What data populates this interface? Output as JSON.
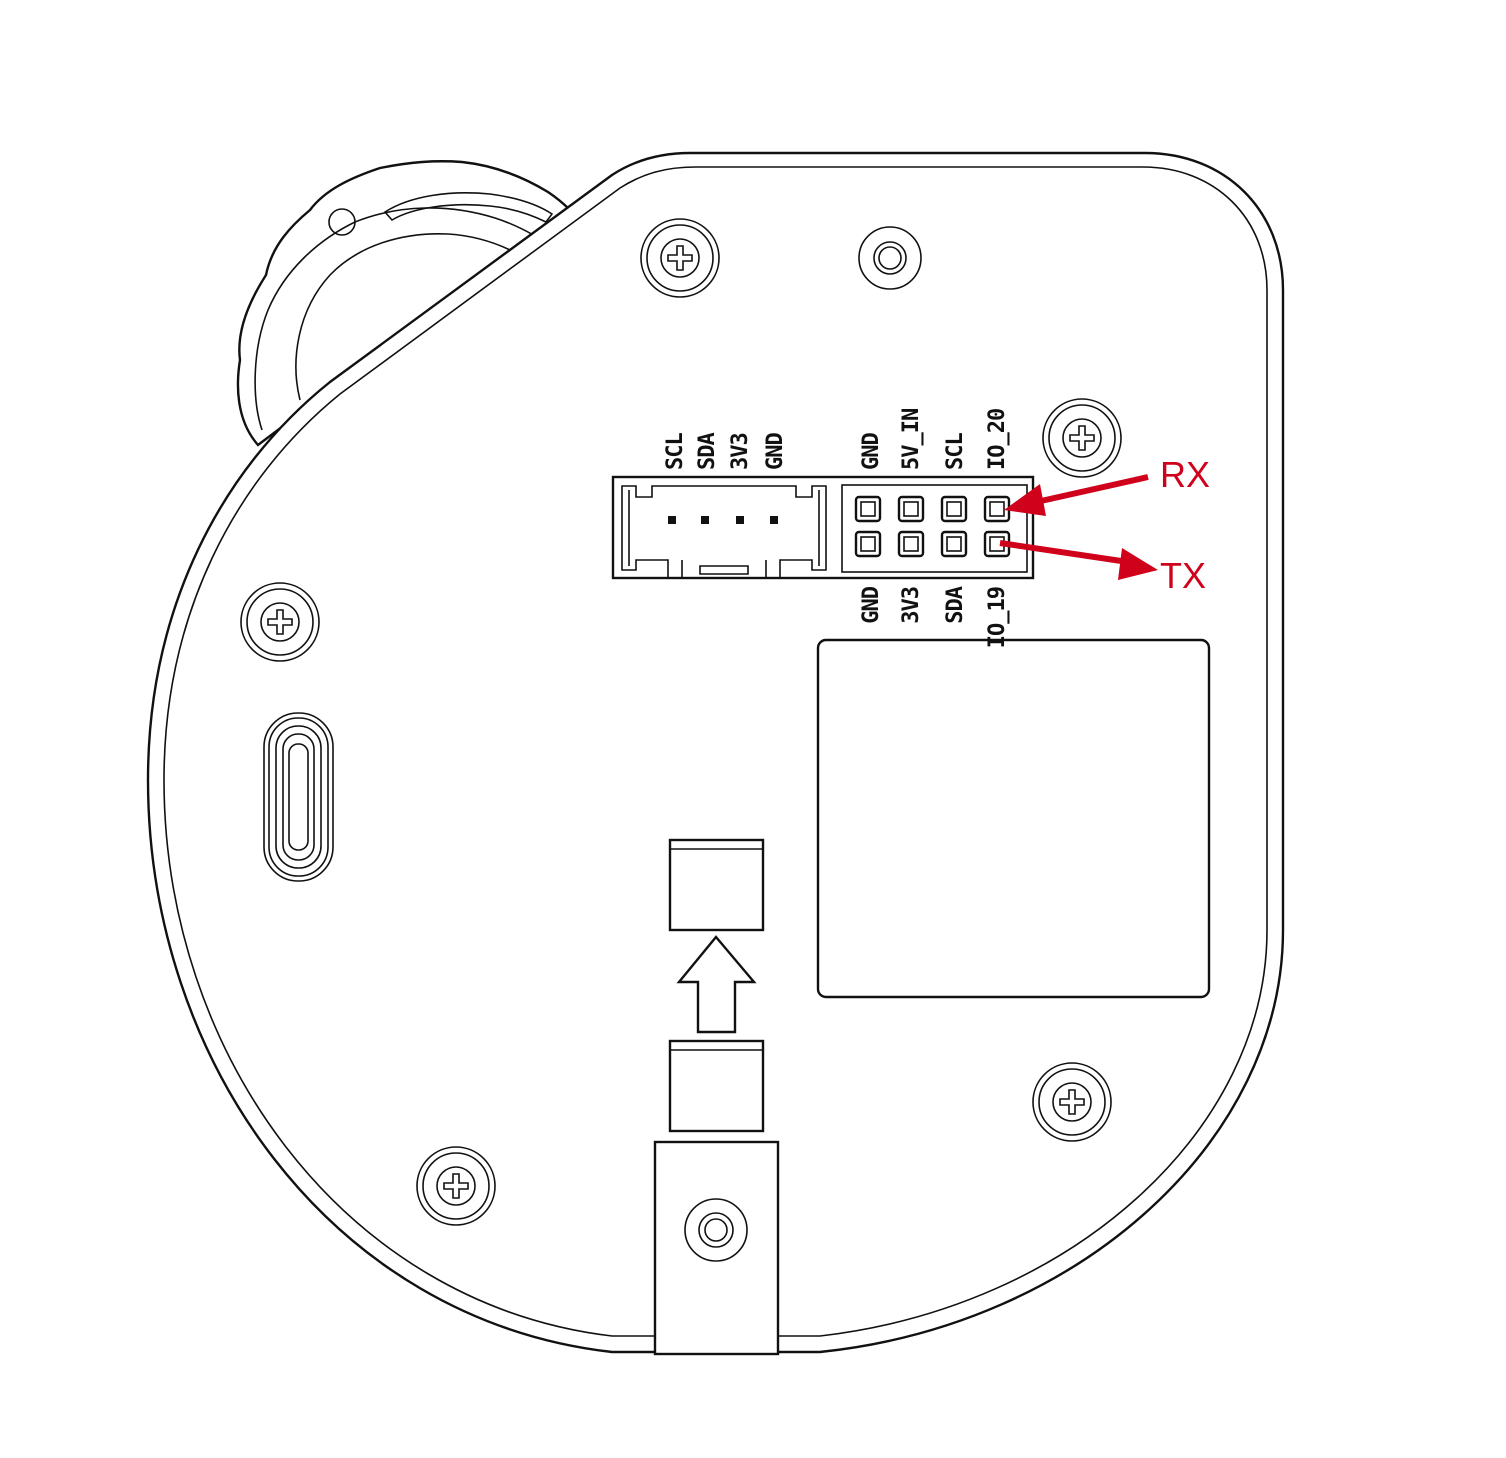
{
  "grove_port": {
    "labels": [
      "SCL",
      "SDA",
      "3V3",
      "GND"
    ]
  },
  "header_top_row": {
    "labels": [
      "GND",
      "5V_IN",
      "SCL",
      "IO_20"
    ]
  },
  "header_bottom_row": {
    "labels": [
      "GND",
      "3V3",
      "SDA",
      "IO_19"
    ]
  },
  "annotations": {
    "rx_label": "RX",
    "tx_label": "TX",
    "color": "#d0021b"
  },
  "icons": {
    "screws": "screw-head-icon",
    "usb": "usb-c-port-icon",
    "arrow": "insert-direction-arrow-icon"
  }
}
